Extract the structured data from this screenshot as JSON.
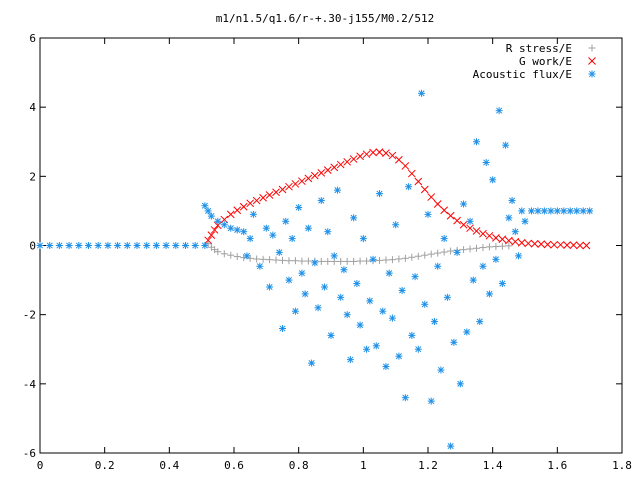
{
  "chart_data": {
    "type": "scatter",
    "title": "m1/n1.5/q1.6/r-+.30-j155/M0.2/512",
    "xlabel": "",
    "ylabel": "",
    "xlim": [
      0,
      1.8
    ],
    "ylim": [
      -6,
      6
    ],
    "xticks": [
      0,
      0.2,
      0.4,
      0.6,
      0.8,
      1,
      1.2,
      1.4,
      1.6,
      1.8
    ],
    "xtick_labels": [
      "0",
      "0.2",
      "0.4",
      "0.6",
      "0.8",
      "1",
      "1.2",
      "1.4",
      "1.6",
      "1.8"
    ],
    "yticks": [
      -6,
      -4,
      -2,
      0,
      2,
      4,
      6
    ],
    "ytick_labels": [
      "-6",
      "-4",
      "-2",
      "0",
      "2",
      "4",
      "6"
    ],
    "grid": false,
    "legend_position": "top-right",
    "series": [
      {
        "name": "R stress/E",
        "marker": "plus",
        "color": "#a0a0a0",
        "points": [
          [
            0.52,
            0.05
          ],
          [
            0.53,
            -0.05
          ],
          [
            0.54,
            -0.12
          ],
          [
            0.55,
            -0.18
          ],
          [
            0.57,
            -0.24
          ],
          [
            0.59,
            -0.28
          ],
          [
            0.61,
            -0.32
          ],
          [
            0.63,
            -0.35
          ],
          [
            0.65,
            -0.37
          ],
          [
            0.67,
            -0.39
          ],
          [
            0.69,
            -0.4
          ],
          [
            0.71,
            -0.41
          ],
          [
            0.73,
            -0.42
          ],
          [
            0.75,
            -0.43
          ],
          [
            0.77,
            -0.44
          ],
          [
            0.79,
            -0.44
          ],
          [
            0.81,
            -0.45
          ],
          [
            0.83,
            -0.45
          ],
          [
            0.85,
            -0.45
          ],
          [
            0.87,
            -0.46
          ],
          [
            0.89,
            -0.46
          ],
          [
            0.91,
            -0.46
          ],
          [
            0.93,
            -0.46
          ],
          [
            0.95,
            -0.46
          ],
          [
            0.97,
            -0.46
          ],
          [
            0.99,
            -0.45
          ],
          [
            1.01,
            -0.45
          ],
          [
            1.03,
            -0.44
          ],
          [
            1.05,
            -0.43
          ],
          [
            1.07,
            -0.42
          ],
          [
            1.09,
            -0.41
          ],
          [
            1.11,
            -0.39
          ],
          [
            1.13,
            -0.37
          ],
          [
            1.15,
            -0.34
          ],
          [
            1.17,
            -0.31
          ],
          [
            1.19,
            -0.28
          ],
          [
            1.21,
            -0.25
          ],
          [
            1.23,
            -0.22
          ],
          [
            1.25,
            -0.19
          ],
          [
            1.27,
            -0.16
          ],
          [
            1.29,
            -0.14
          ],
          [
            1.31,
            -0.12
          ],
          [
            1.33,
            -0.1
          ],
          [
            1.35,
            -0.08
          ],
          [
            1.37,
            -0.06
          ],
          [
            1.39,
            -0.04
          ],
          [
            1.41,
            -0.03
          ],
          [
            1.43,
            -0.02
          ],
          [
            1.45,
            -0.01
          ]
        ]
      },
      {
        "name": "G work/E",
        "marker": "cross",
        "color": "#ff0000",
        "points": [
          [
            0.52,
            0.15
          ],
          [
            0.53,
            0.3
          ],
          [
            0.54,
            0.45
          ],
          [
            0.55,
            0.58
          ],
          [
            0.57,
            0.75
          ],
          [
            0.59,
            0.9
          ],
          [
            0.61,
            1.02
          ],
          [
            0.63,
            1.12
          ],
          [
            0.65,
            1.22
          ],
          [
            0.67,
            1.3
          ],
          [
            0.69,
            1.38
          ],
          [
            0.71,
            1.46
          ],
          [
            0.73,
            1.54
          ],
          [
            0.75,
            1.62
          ],
          [
            0.77,
            1.7
          ],
          [
            0.79,
            1.78
          ],
          [
            0.81,
            1.86
          ],
          [
            0.83,
            1.94
          ],
          [
            0.85,
            2.02
          ],
          [
            0.87,
            2.1
          ],
          [
            0.89,
            2.18
          ],
          [
            0.91,
            2.26
          ],
          [
            0.93,
            2.34
          ],
          [
            0.95,
            2.42
          ],
          [
            0.97,
            2.5
          ],
          [
            0.99,
            2.58
          ],
          [
            1.01,
            2.64
          ],
          [
            1.03,
            2.69
          ],
          [
            1.05,
            2.7
          ],
          [
            1.07,
            2.67
          ],
          [
            1.09,
            2.6
          ],
          [
            1.11,
            2.48
          ],
          [
            1.13,
            2.3
          ],
          [
            1.15,
            2.08
          ],
          [
            1.17,
            1.85
          ],
          [
            1.19,
            1.62
          ],
          [
            1.21,
            1.4
          ],
          [
            1.23,
            1.2
          ],
          [
            1.25,
            1.02
          ],
          [
            1.27,
            0.86
          ],
          [
            1.29,
            0.72
          ],
          [
            1.31,
            0.6
          ],
          [
            1.33,
            0.5
          ],
          [
            1.35,
            0.42
          ],
          [
            1.37,
            0.34
          ],
          [
            1.39,
            0.28
          ],
          [
            1.41,
            0.22
          ],
          [
            1.43,
            0.18
          ],
          [
            1.45,
            0.14
          ],
          [
            1.47,
            0.11
          ],
          [
            1.49,
            0.08
          ],
          [
            1.51,
            0.06
          ],
          [
            1.53,
            0.05
          ],
          [
            1.55,
            0.04
          ],
          [
            1.57,
            0.03
          ],
          [
            1.59,
            0.02
          ],
          [
            1.61,
            0.02
          ],
          [
            1.63,
            0.01
          ],
          [
            1.65,
            0.01
          ],
          [
            1.67,
            0.0
          ],
          [
            1.69,
            0.0
          ]
        ]
      },
      {
        "name": "Acoustic flux/E",
        "marker": "asterisk",
        "color": "#1e90e8",
        "points": [
          [
            0.0,
            0.0
          ],
          [
            0.03,
            0.0
          ],
          [
            0.06,
            0.0
          ],
          [
            0.09,
            0.0
          ],
          [
            0.12,
            0.0
          ],
          [
            0.15,
            0.0
          ],
          [
            0.18,
            0.0
          ],
          [
            0.21,
            0.0
          ],
          [
            0.24,
            0.0
          ],
          [
            0.27,
            0.0
          ],
          [
            0.3,
            0.0
          ],
          [
            0.33,
            0.0
          ],
          [
            0.36,
            0.0
          ],
          [
            0.39,
            0.0
          ],
          [
            0.42,
            0.0
          ],
          [
            0.45,
            0.0
          ],
          [
            0.48,
            0.0
          ],
          [
            0.51,
            0.0
          ],
          [
            0.51,
            1.15
          ],
          [
            0.52,
            1.0
          ],
          [
            0.53,
            0.85
          ],
          [
            0.55,
            0.7
          ],
          [
            0.57,
            0.6
          ],
          [
            0.59,
            0.5
          ],
          [
            0.61,
            0.45
          ],
          [
            0.63,
            0.4
          ],
          [
            0.65,
            0.2
          ],
          [
            0.64,
            -0.3
          ],
          [
            0.66,
            0.9
          ],
          [
            0.68,
            -0.6
          ],
          [
            0.7,
            0.5
          ],
          [
            0.71,
            -1.2
          ],
          [
            0.72,
            0.3
          ],
          [
            0.74,
            -0.2
          ],
          [
            0.75,
            -2.4
          ],
          [
            0.76,
            0.7
          ],
          [
            0.77,
            -1.0
          ],
          [
            0.78,
            0.2
          ],
          [
            0.79,
            -1.9
          ],
          [
            0.8,
            1.1
          ],
          [
            0.81,
            -0.8
          ],
          [
            0.82,
            -1.4
          ],
          [
            0.83,
            0.5
          ],
          [
            0.84,
            -3.4
          ],
          [
            0.85,
            -0.5
          ],
          [
            0.86,
            -1.8
          ],
          [
            0.87,
            1.3
          ],
          [
            0.88,
            -1.2
          ],
          [
            0.89,
            0.4
          ],
          [
            0.9,
            -2.6
          ],
          [
            0.91,
            -0.3
          ],
          [
            0.92,
            1.6
          ],
          [
            0.93,
            -1.5
          ],
          [
            0.94,
            -0.7
          ],
          [
            0.95,
            -2.0
          ],
          [
            0.96,
            -3.3
          ],
          [
            0.97,
            0.8
          ],
          [
            0.98,
            -1.1
          ],
          [
            0.99,
            -2.3
          ],
          [
            1.0,
            0.2
          ],
          [
            1.01,
            -3.0
          ],
          [
            1.02,
            -1.6
          ],
          [
            1.03,
            -0.4
          ],
          [
            1.04,
            -2.9
          ],
          [
            1.05,
            1.5
          ],
          [
            1.06,
            -1.9
          ],
          [
            1.07,
            -3.5
          ],
          [
            1.08,
            -0.8
          ],
          [
            1.09,
            -2.1
          ],
          [
            1.1,
            0.6
          ],
          [
            1.11,
            -3.2
          ],
          [
            1.12,
            -1.3
          ],
          [
            1.13,
            -4.4
          ],
          [
            1.14,
            1.7
          ],
          [
            1.15,
            -2.6
          ],
          [
            1.16,
            -0.9
          ],
          [
            1.17,
            -3.0
          ],
          [
            1.18,
            4.4
          ],
          [
            1.19,
            -1.7
          ],
          [
            1.2,
            0.9
          ],
          [
            1.21,
            -4.5
          ],
          [
            1.22,
            -2.2
          ],
          [
            1.23,
            -0.6
          ],
          [
            1.24,
            -3.6
          ],
          [
            1.25,
            0.2
          ],
          [
            1.26,
            -1.5
          ],
          [
            1.27,
            -5.8
          ],
          [
            1.28,
            -2.8
          ],
          [
            1.29,
            -0.2
          ],
          [
            1.3,
            -4.0
          ],
          [
            1.31,
            1.2
          ],
          [
            1.32,
            -2.5
          ],
          [
            1.33,
            0.7
          ],
          [
            1.34,
            -1.0
          ],
          [
            1.35,
            3.0
          ],
          [
            1.36,
            -2.2
          ],
          [
            1.37,
            -0.6
          ],
          [
            1.38,
            2.4
          ],
          [
            1.39,
            -1.4
          ],
          [
            1.4,
            1.9
          ],
          [
            1.41,
            -0.4
          ],
          [
            1.42,
            3.9
          ],
          [
            1.43,
            -1.1
          ],
          [
            1.44,
            2.9
          ],
          [
            1.45,
            0.8
          ],
          [
            1.46,
            1.3
          ],
          [
            1.47,
            0.4
          ],
          [
            1.48,
            -0.3
          ],
          [
            1.49,
            1.0
          ],
          [
            1.5,
            0.7
          ],
          [
            1.52,
            1.0
          ],
          [
            1.54,
            1.0
          ],
          [
            1.56,
            1.0
          ],
          [
            1.58,
            1.0
          ],
          [
            1.6,
            1.0
          ],
          [
            1.62,
            1.0
          ],
          [
            1.64,
            1.0
          ],
          [
            1.66,
            1.0
          ],
          [
            1.68,
            1.0
          ],
          [
            1.7,
            1.0
          ]
        ]
      }
    ]
  }
}
